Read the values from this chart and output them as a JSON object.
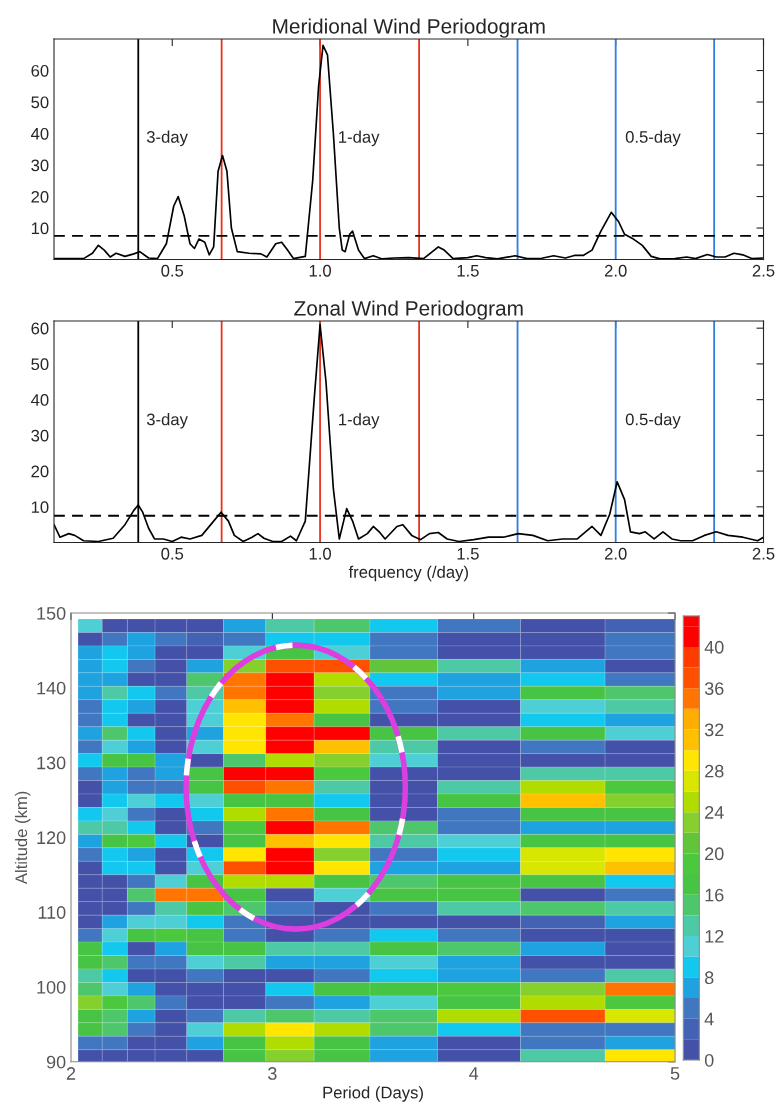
{
  "chart_data": [
    {
      "type": "line",
      "title": "Meridional Wind Periodogram",
      "xlim": [
        0.1,
        2.5
      ],
      "ylim": [
        0,
        70
      ],
      "xticks": [
        {
          "value": 0.5,
          "label": "0.5"
        },
        {
          "value": 1.0,
          "label": "1.0"
        },
        {
          "value": 1.5,
          "label": "1.5"
        },
        {
          "value": 2.0,
          "label": "2.0"
        },
        {
          "value": 2.5,
          "label": "2.5"
        }
      ],
      "yticks": [
        10,
        20,
        30,
        40,
        50,
        60
      ],
      "grid": false,
      "legend": false,
      "x": [
        0.1,
        0.2,
        0.23,
        0.25,
        0.27,
        0.29,
        0.31,
        0.34,
        0.37,
        0.39,
        0.42,
        0.45,
        0.48,
        0.505,
        0.52,
        0.54,
        0.56,
        0.575,
        0.59,
        0.61,
        0.625,
        0.64,
        0.655,
        0.67,
        0.685,
        0.7,
        0.72,
        0.76,
        0.8,
        0.82,
        0.85,
        0.87,
        0.89,
        0.91,
        0.95,
        0.975,
        0.995,
        1.01,
        1.025,
        1.045,
        1.065,
        1.075,
        1.085,
        1.1,
        1.11,
        1.13,
        1.15,
        1.18,
        1.21,
        1.25,
        1.3,
        1.35,
        1.38,
        1.4,
        1.42,
        1.45,
        1.5,
        1.53,
        1.56,
        1.6,
        1.66,
        1.7,
        1.75,
        1.79,
        1.83,
        1.86,
        1.89,
        1.92,
        1.95,
        1.985,
        2.01,
        2.03,
        2.06,
        2.09,
        2.12,
        2.15,
        2.2,
        2.24,
        2.27,
        2.31,
        2.34,
        2.37,
        2.4,
        2.43,
        2.46,
        2.5
      ],
      "series": [
        {
          "color": "#000000",
          "values": [
            0.3,
            0.3,
            2,
            4.5,
            3,
            0.8,
            2,
            1,
            1.8,
            2.5,
            0.5,
            0.3,
            5,
            17,
            20,
            14,
            5,
            3.5,
            6.5,
            5.5,
            1.5,
            4,
            28,
            33,
            28,
            10,
            2.5,
            2,
            1.8,
            0.8,
            5,
            5.5,
            3,
            0.3,
            1,
            25,
            55,
            68,
            65,
            40,
            10,
            3,
            2.5,
            8,
            9,
            3,
            0.3,
            1.2,
            0.2,
            0.5,
            0.6,
            0.3,
            2.5,
            4,
            3,
            0.3,
            0.6,
            1.2,
            0.6,
            0.2,
            1.2,
            0.3,
            0.4,
            1.2,
            0.5,
            1.3,
            1.3,
            3,
            9,
            15,
            12,
            8,
            6.5,
            4.5,
            1,
            0.2,
            0.3,
            0.8,
            0.3,
            1.6,
            0.8,
            0.8,
            2,
            1.5,
            0.3,
            0.5
          ]
        }
      ],
      "ref_lines": [
        {
          "axis": "x",
          "value": 0.385,
          "color": "#000000"
        },
        {
          "axis": "x",
          "value": 0.667,
          "color": "#e8321e"
        },
        {
          "axis": "x",
          "value": 1.0,
          "color": "#e8321e"
        },
        {
          "axis": "x",
          "value": 1.335,
          "color": "#e8321e"
        },
        {
          "axis": "x",
          "value": 1.668,
          "color": "#2f7fe0"
        },
        {
          "axis": "x",
          "value": 2.0,
          "color": "#2f7fe0"
        },
        {
          "axis": "x",
          "value": 2.333,
          "color": "#2f7fe0"
        },
        {
          "axis": "y",
          "value": 7.5,
          "color": "#000000",
          "line_style": "dashed"
        }
      ],
      "annotations": [
        "3-day",
        "1-day",
        "0.5-day"
      ]
    },
    {
      "type": "line",
      "title": "Zonal Wind Periodogram",
      "xlabel": "frequency (/day)",
      "xlim": [
        0.1,
        2.5
      ],
      "ylim": [
        0,
        62
      ],
      "xticks": [
        {
          "value": 0.5,
          "label": "0.5"
        },
        {
          "value": 1.0,
          "label": "1.0"
        },
        {
          "value": 1.5,
          "label": "1.5"
        },
        {
          "value": 2.0,
          "label": "2.0"
        },
        {
          "value": 2.5,
          "label": "2.5"
        }
      ],
      "yticks": [
        10,
        20,
        30,
        40,
        50,
        60
      ],
      "grid": false,
      "legend": false,
      "x": [
        0.1,
        0.12,
        0.15,
        0.17,
        0.2,
        0.25,
        0.3,
        0.34,
        0.37,
        0.385,
        0.4,
        0.42,
        0.44,
        0.47,
        0.5,
        0.53,
        0.56,
        0.6,
        0.64,
        0.665,
        0.69,
        0.71,
        0.74,
        0.77,
        0.79,
        0.81,
        0.84,
        0.87,
        0.9,
        0.92,
        0.95,
        0.98,
        1.0,
        1.02,
        1.045,
        1.065,
        1.09,
        1.11,
        1.13,
        1.16,
        1.18,
        1.2,
        1.22,
        1.26,
        1.28,
        1.31,
        1.34,
        1.37,
        1.4,
        1.43,
        1.47,
        1.52,
        1.57,
        1.62,
        1.67,
        1.72,
        1.77,
        1.82,
        1.87,
        1.92,
        1.95,
        1.98,
        2.005,
        2.03,
        2.05,
        2.08,
        2.1,
        2.13,
        2.16,
        2.19,
        2.22,
        2.26,
        2.3,
        2.34,
        2.38,
        2.43,
        2.48,
        2.5
      ],
      "series": [
        {
          "color": "#000000",
          "values": [
            5,
            1.5,
            2.5,
            2,
            0.5,
            0.3,
            1.2,
            5,
            9,
            10.5,
            8.5,
            4,
            1,
            1,
            0.3,
            1.5,
            1,
            2,
            6,
            8.5,
            6,
            2,
            0.3,
            1.5,
            2.5,
            1.2,
            0.3,
            0.3,
            1.8,
            0.5,
            6,
            40,
            61,
            45,
            15,
            1,
            9.5,
            6,
            1,
            2.5,
            4.5,
            3,
            1,
            4.5,
            5,
            2,
            0.8,
            2.5,
            2.8,
            1,
            0.3,
            0.8,
            1.5,
            1.5,
            2.5,
            2,
            0.5,
            1,
            1,
            4.5,
            2,
            8,
            17,
            12,
            3,
            2.5,
            3,
            1,
            3,
            1,
            0.5,
            0.5,
            2,
            3,
            2,
            1.5,
            0.5,
            1.5
          ]
        }
      ],
      "ref_lines": [
        {
          "axis": "x",
          "value": 0.385,
          "color": "#000000"
        },
        {
          "axis": "x",
          "value": 0.667,
          "color": "#e8321e"
        },
        {
          "axis": "x",
          "value": 1.0,
          "color": "#e8321e"
        },
        {
          "axis": "x",
          "value": 1.335,
          "color": "#e8321e"
        },
        {
          "axis": "x",
          "value": 1.668,
          "color": "#2f7fe0"
        },
        {
          "axis": "x",
          "value": 2.0,
          "color": "#2f7fe0"
        },
        {
          "axis": "x",
          "value": 2.333,
          "color": "#2f7fe0"
        },
        {
          "axis": "y",
          "value": 7.5,
          "color": "#000000",
          "line_style": "dashed"
        }
      ],
      "annotations": [
        "3-day",
        "1-day",
        "0.5-day"
      ]
    },
    {
      "type": "heatmap",
      "xlabel": "Period (Days)",
      "ylabel": "Altitude (km)",
      "xlim": [
        2,
        5
      ],
      "ylim": [
        90,
        150
      ],
      "xticks": [
        2,
        3,
        4,
        5
      ],
      "yticks": [
        90,
        100,
        110,
        120,
        130,
        140,
        150
      ],
      "clim": [
        0,
        43
      ],
      "cticks": [
        0,
        4,
        8,
        12,
        16,
        20,
        24,
        28,
        32,
        36,
        40
      ],
      "x": [
        2.095,
        2.215,
        2.345,
        2.49,
        2.66,
        2.855,
        3.08,
        3.335,
        3.635,
        4.005,
        4.46,
        4.845
      ],
      "y": [
        148.3,
        146.5,
        144.7,
        142.9,
        141.1,
        139.3,
        137.5,
        135.7,
        133.9,
        132.1,
        130.3,
        128.5,
        126.7,
        124.9,
        123.1,
        121.3,
        119.5,
        117.7,
        115.9,
        114.1,
        112.3,
        110.5,
        108.7,
        106.9,
        105.1,
        103.3,
        101.5,
        99.7,
        97.9,
        96.1,
        94.3,
        92.5,
        90.7
      ],
      "cells": [
        [
          10,
          0,
          0,
          0,
          0,
          6,
          12,
          14,
          8,
          4,
          0,
          2
        ],
        [
          0,
          4,
          6,
          4,
          2,
          4,
          8,
          8,
          4,
          0,
          0,
          4
        ],
        [
          6,
          8,
          6,
          0,
          0,
          10,
          16,
          10,
          4,
          0,
          0,
          4
        ],
        [
          6,
          8,
          4,
          0,
          6,
          22,
          36,
          36,
          20,
          12,
          6,
          0
        ],
        [
          6,
          6,
          0,
          0,
          14,
          34,
          40,
          24,
          8,
          6,
          8,
          4
        ],
        [
          6,
          12,
          8,
          4,
          12,
          34,
          40,
          22,
          4,
          6,
          16,
          14
        ],
        [
          4,
          8,
          6,
          0,
          10,
          30,
          40,
          24,
          4,
          0,
          10,
          12
        ],
        [
          4,
          8,
          0,
          0,
          10,
          28,
          34,
          16,
          0,
          0,
          8,
          6
        ],
        [
          6,
          14,
          8,
          0,
          6,
          28,
          40,
          40,
          16,
          12,
          16,
          10
        ],
        [
          4,
          10,
          6,
          0,
          10,
          28,
          40,
          30,
          12,
          0,
          4,
          0
        ],
        [
          8,
          16,
          16,
          6,
          0,
          14,
          24,
          22,
          10,
          0,
          0,
          0
        ],
        [
          4,
          6,
          4,
          6,
          16,
          40,
          40,
          18,
          0,
          0,
          12,
          12
        ],
        [
          0,
          6,
          4,
          4,
          16,
          36,
          34,
          12,
          0,
          12,
          24,
          18
        ],
        [
          0,
          8,
          10,
          8,
          10,
          16,
          16,
          8,
          0,
          16,
          30,
          22
        ],
        [
          8,
          10,
          4,
          0,
          8,
          24,
          34,
          16,
          0,
          4,
          16,
          16
        ],
        [
          12,
          12,
          8,
          0,
          4,
          18,
          40,
          34,
          14,
          4,
          6,
          6
        ],
        [
          6,
          16,
          18,
          8,
          0,
          16,
          30,
          28,
          12,
          10,
          16,
          16
        ],
        [
          4,
          8,
          6,
          0,
          8,
          28,
          40,
          22,
          4,
          8,
          26,
          28
        ],
        [
          0,
          8,
          8,
          0,
          10,
          36,
          40,
          28,
          6,
          6,
          26,
          30
        ],
        [
          0,
          0,
          4,
          10,
          16,
          24,
          24,
          16,
          14,
          16,
          16,
          8
        ],
        [
          0,
          0,
          14,
          34,
          34,
          16,
          0,
          10,
          16,
          16,
          0,
          4
        ],
        [
          0,
          0,
          4,
          12,
          16,
          14,
          4,
          0,
          4,
          12,
          14,
          12
        ],
        [
          0,
          6,
          10,
          10,
          8,
          4,
          0,
          0,
          0,
          0,
          2,
          6
        ],
        [
          4,
          10,
          16,
          18,
          16,
          4,
          0,
          4,
          8,
          4,
          0,
          0
        ],
        [
          16,
          8,
          0,
          6,
          16,
          16,
          12,
          12,
          16,
          14,
          6,
          0
        ],
        [
          16,
          14,
          4,
          4,
          10,
          12,
          6,
          6,
          10,
          6,
          0,
          0
        ],
        [
          12,
          8,
          0,
          0,
          4,
          0,
          0,
          4,
          8,
          6,
          4,
          12
        ],
        [
          14,
          10,
          6,
          0,
          0,
          0,
          8,
          16,
          16,
          18,
          22,
          34
        ],
        [
          22,
          18,
          14,
          4,
          0,
          0,
          4,
          6,
          10,
          16,
          24,
          18
        ],
        [
          16,
          14,
          6,
          0,
          4,
          12,
          14,
          12,
          14,
          24,
          36,
          26
        ],
        [
          16,
          14,
          4,
          0,
          10,
          24,
          28,
          24,
          14,
          8,
          4,
          4
        ],
        [
          4,
          4,
          0,
          0,
          6,
          16,
          24,
          16,
          6,
          0,
          4,
          6
        ],
        [
          0,
          0,
          0,
          0,
          0,
          16,
          22,
          16,
          6,
          0,
          12,
          28
        ]
      ]
    }
  ]
}
